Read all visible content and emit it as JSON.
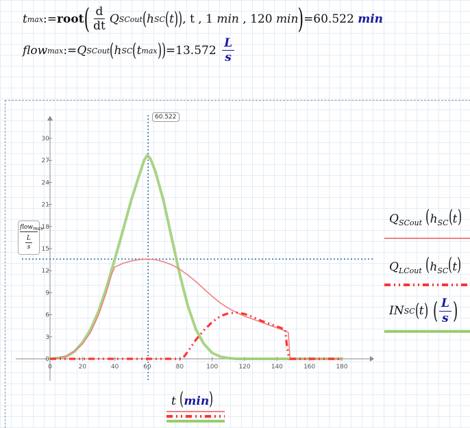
{
  "worksheet": {
    "eq1": {
      "var": "t",
      "var_sub": "max",
      "assign": ":=",
      "func": "root",
      "d_num": "d",
      "d_den": "dt",
      "q": "Q",
      "q_sub": "SCout",
      "h": "h",
      "h_sub": "SC",
      "t": "t",
      "args_tail": ", t , 1 ",
      "unit_min1": "min",
      "sep": " , 120 ",
      "unit_min2": "min",
      "result": "=60.522 ",
      "result_unit": "min"
    },
    "eq2": {
      "var": "flow",
      "var_sub": "max",
      "assign": ":=",
      "q": "Q",
      "q_sub": "SCout",
      "h": "h",
      "h_sub": "SC",
      "t": "t",
      "t_sub": "max",
      "result": "=13.572 ",
      "unit_num": "L",
      "unit_den": "s"
    }
  },
  "chart_data": {
    "type": "line",
    "xlim": [
      0,
      180
    ],
    "ylim": [
      0,
      30
    ],
    "x_ticks": [
      "0",
      "20",
      "40",
      "60",
      "80",
      "100",
      "120",
      "140",
      "160",
      "180"
    ],
    "y_ticks": [
      "0",
      "3",
      "6",
      "9",
      "12",
      "15",
      "18",
      "21",
      "24",
      "27",
      "30"
    ],
    "xlabel": {
      "var": "t",
      "unit": "min"
    },
    "ylabel": {
      "num": "flow",
      "num_sub": "max",
      "den_num": "L",
      "den_den": "s"
    },
    "markers": {
      "vertical_x": 60.522,
      "vertical_label": "60.522",
      "horizontal_y": 13.572
    },
    "series": [
      {
        "name": "Q_SCout(h_SC(t))",
        "color": "#f08080",
        "style": "solid",
        "x": [
          0,
          5,
          10,
          15,
          20,
          25,
          30,
          35,
          38,
          40,
          45,
          50,
          55,
          60,
          65,
          70,
          75,
          80,
          85,
          90,
          95,
          100,
          105,
          110,
          115,
          120,
          125,
          130,
          135,
          140,
          145,
          147,
          148,
          150,
          160,
          170,
          180
        ],
        "y": [
          0,
          0.1,
          0.4,
          1.0,
          2.0,
          3.6,
          6.0,
          9.2,
          11.5,
          12.5,
          13.0,
          13.3,
          13.5,
          13.57,
          13.5,
          13.2,
          12.8,
          12.2,
          11.4,
          10.5,
          9.5,
          8.5,
          7.6,
          6.9,
          6.3,
          5.8,
          5.4,
          5.0,
          4.6,
          4.2,
          3.8,
          3.6,
          0,
          0,
          0,
          0,
          0
        ]
      },
      {
        "name": "Q_LCout(h_SC(t))",
        "color": "#ff3333",
        "style": "dash-dot",
        "x": [
          0,
          20,
          40,
          60,
          80,
          81,
          82,
          85,
          90,
          95,
          100,
          105,
          110,
          115,
          120,
          125,
          130,
          135,
          140,
          145,
          146,
          147,
          148,
          150,
          160,
          170,
          180
        ],
        "y": [
          0,
          0,
          0,
          0,
          0,
          0,
          0.1,
          1.0,
          2.6,
          3.9,
          5.0,
          5.8,
          6.2,
          6.3,
          6.1,
          5.7,
          5.2,
          4.8,
          4.4,
          4.0,
          2.0,
          0.6,
          0,
          0,
          0,
          0,
          0
        ]
      },
      {
        "name": "IN_SC(t)",
        "unit_num": "L",
        "unit_den": "s",
        "color": "#9ccc72",
        "style": "solid",
        "x": [
          0,
          5,
          10,
          15,
          20,
          25,
          30,
          35,
          40,
          45,
          50,
          55,
          58,
          60,
          62,
          65,
          70,
          75,
          80,
          85,
          90,
          95,
          100,
          105,
          110,
          115,
          120,
          130,
          140,
          150,
          160,
          170,
          180
        ],
        "y": [
          0,
          0.1,
          0.3,
          1.0,
          2.2,
          4.0,
          6.5,
          9.8,
          13.6,
          17.5,
          21.5,
          25.0,
          27.0,
          27.7,
          27.2,
          25.5,
          21.5,
          16.5,
          11.5,
          7.2,
          4.0,
          2.0,
          0.8,
          0.3,
          0.1,
          0,
          0,
          0,
          0,
          0,
          0,
          0,
          0
        ]
      }
    ],
    "legend_position": "right",
    "grid": false
  },
  "legend": {
    "items": [
      {
        "q": "Q",
        "sub": "SCout",
        "arg_h": "h",
        "arg_sub": "SC",
        "arg_t": "t"
      },
      {
        "q": "Q",
        "sub": "LCout",
        "arg_h": "h",
        "arg_sub": "SC",
        "arg_t": "t"
      },
      {
        "q": "IN",
        "sub": "SC",
        "arg_t": "t",
        "unit_num": "L",
        "unit_den": "s"
      }
    ]
  }
}
